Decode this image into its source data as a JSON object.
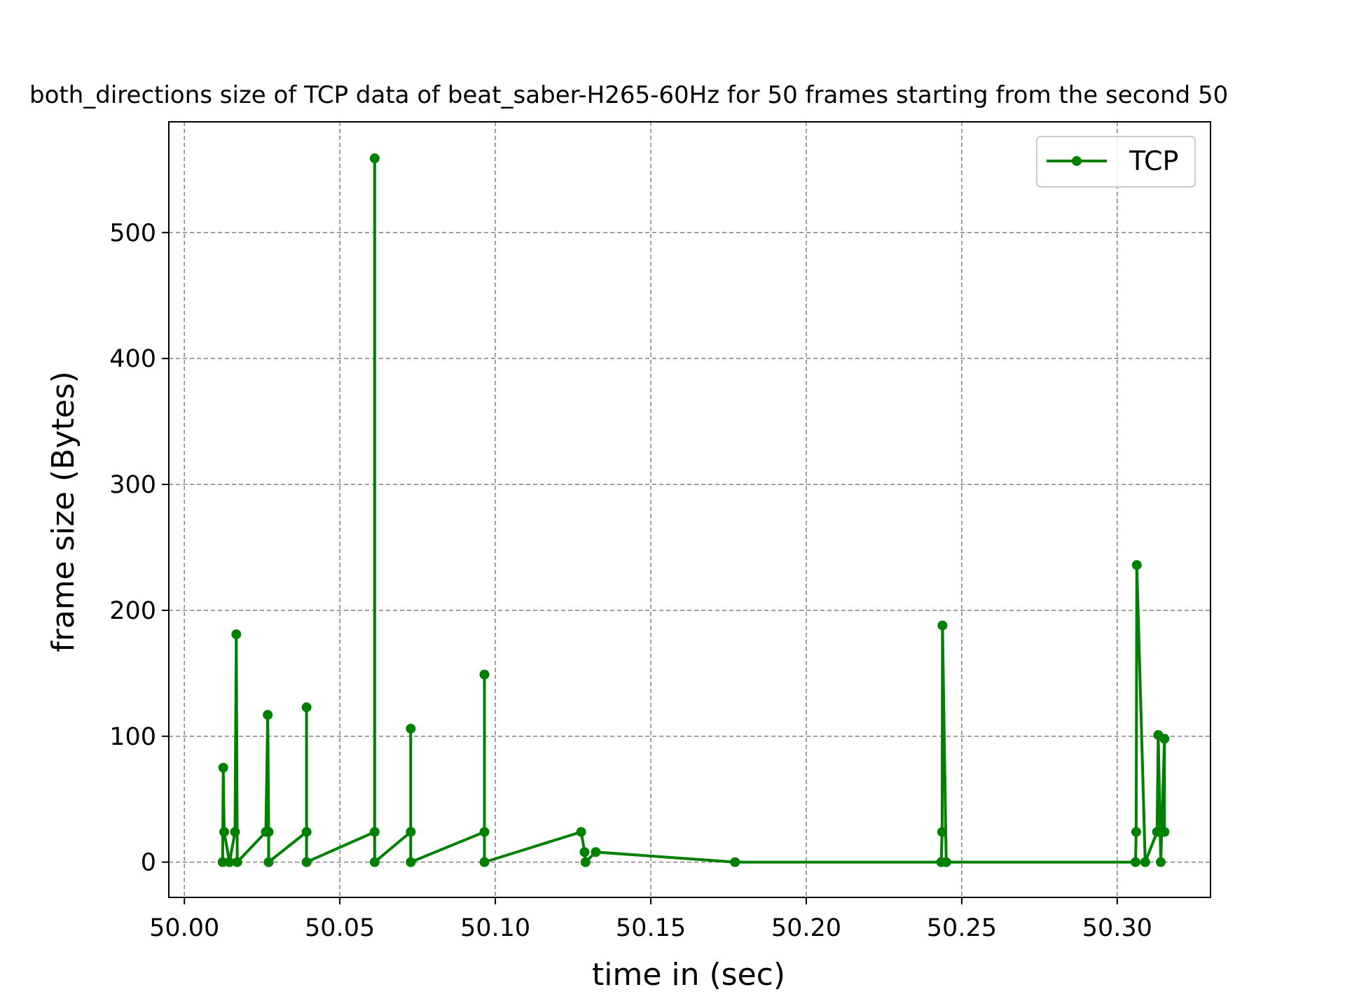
{
  "chart_data": {
    "type": "line",
    "title": "both_directions size of TCP data of beat_saber-H265-60Hz for 50 frames starting from the second 50",
    "xlabel": "time in (sec)",
    "ylabel": "frame size (Bytes)",
    "xlim": [
      49.995,
      50.33
    ],
    "ylim": [
      -28,
      588
    ],
    "xticks": [
      50.0,
      50.05,
      50.1,
      50.15,
      50.2,
      50.25,
      50.3
    ],
    "xtick_labels": [
      "50.00",
      "50.05",
      "50.10",
      "50.15",
      "50.20",
      "50.25",
      "50.30"
    ],
    "yticks": [
      0,
      100,
      200,
      300,
      400,
      500
    ],
    "ytick_labels": [
      "0",
      "100",
      "200",
      "300",
      "400",
      "500"
    ],
    "grid": true,
    "legend_position": "top-right",
    "colors": {
      "series": "#008000",
      "grid": "#808080",
      "axis": "#000000",
      "legend_border": "#cccccc"
    },
    "series": [
      {
        "name": "TCP",
        "x": [
          50.0123,
          50.0125,
          50.0128,
          50.0145,
          50.0163,
          50.0167,
          50.017,
          50.0262,
          50.0268,
          50.0271,
          50.0271,
          50.0393,
          50.0393,
          50.0393,
          50.0612,
          50.0612,
          50.0612,
          50.0728,
          50.0728,
          50.0728,
          50.0965,
          50.0965,
          50.0965,
          50.1276,
          50.1287,
          50.129,
          50.1323,
          50.1771,
          50.2434,
          50.2437,
          50.2438,
          50.245,
          50.3059,
          50.3061,
          50.3063,
          50.309,
          50.3128,
          50.3132,
          50.314,
          50.3152,
          50.3152
        ],
        "y": [
          0,
          75,
          24,
          0,
          24,
          181,
          0,
          24,
          117,
          24,
          0,
          24,
          123,
          0,
          24,
          559,
          0,
          24,
          106,
          0,
          24,
          149,
          0,
          24,
          8,
          0,
          8,
          0,
          0,
          24,
          188,
          0,
          0,
          24,
          236,
          0,
          24,
          101,
          0,
          98,
          24
        ]
      }
    ]
  }
}
